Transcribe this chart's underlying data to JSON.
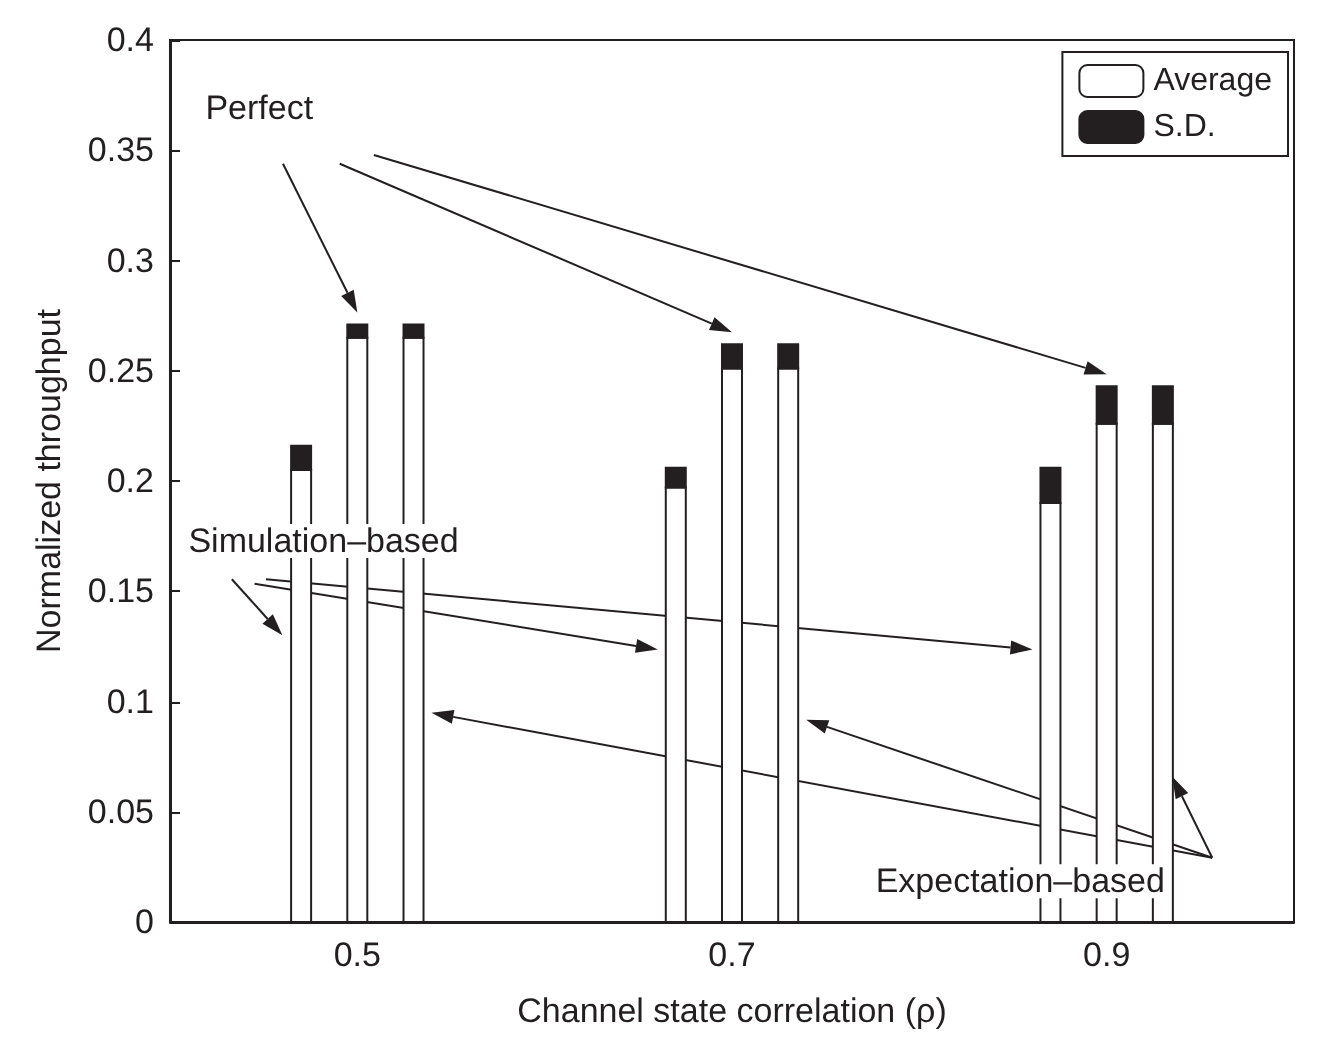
{
  "chart_data": {
    "type": "bar",
    "stacked": true,
    "xlabel": "Channel state correlation (ρ)",
    "ylabel": "Normalized throughput",
    "x": [
      0.47,
      0.5,
      0.53,
      0.67,
      0.7,
      0.73,
      0.87,
      0.9,
      0.93
    ],
    "series": [
      {
        "name": "Average",
        "color": "#ffffff",
        "values": [
          0.205,
          0.265,
          0.265,
          0.197,
          0.251,
          0.251,
          0.19,
          0.226,
          0.226
        ]
      },
      {
        "name": "S.D.",
        "color": "#231f20",
        "values": [
          0.011,
          0.006,
          0.006,
          0.009,
          0.011,
          0.011,
          0.016,
          0.017,
          0.017
        ]
      }
    ],
    "xlim": [
      0.4,
      1.0
    ],
    "xticks": [
      0.5,
      0.7,
      0.9
    ],
    "ylim": [
      0,
      0.4
    ],
    "yticks": [
      0,
      0.05,
      0.1,
      0.15,
      0.2,
      0.25,
      0.3,
      0.35,
      0.4
    ],
    "grid": false,
    "legend": "top right",
    "annotations": [
      "Perfect",
      {
        "text": "Simulation–based",
        "x": 0.46,
        "y": 0.13
      },
      {
        "text": "Expectation–based",
        "x": 0.935,
        "y": 0.066
      }
    ]
  }
}
